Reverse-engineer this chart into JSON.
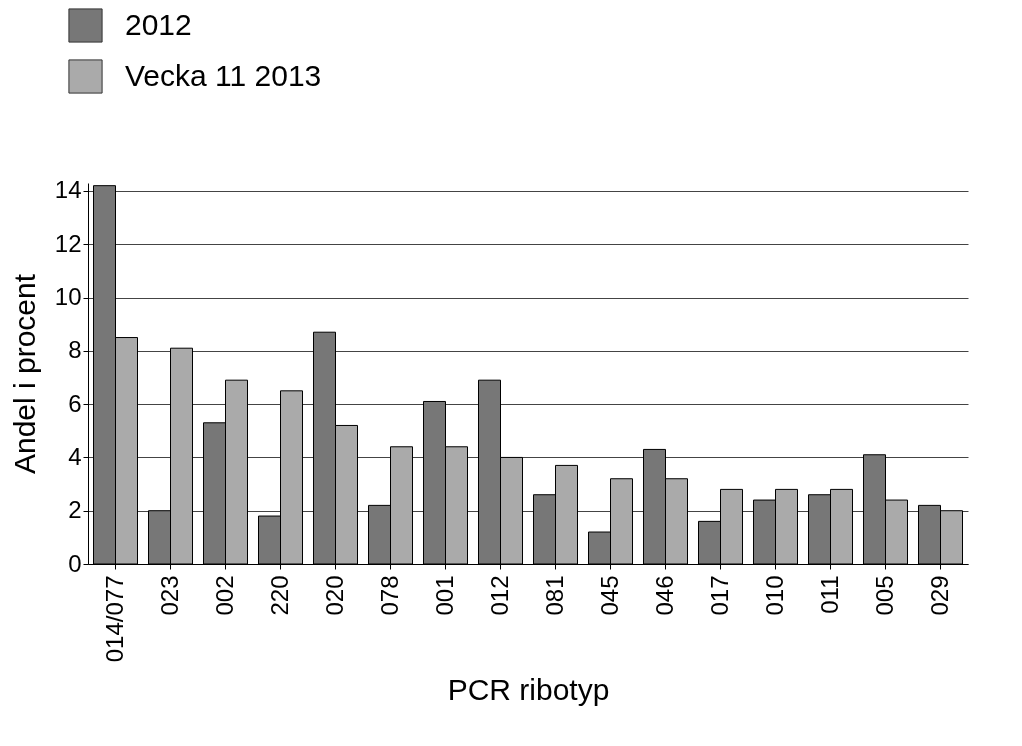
{
  "chart_data": {
    "type": "bar",
    "xlabel": "PCR ribotyp",
    "ylabel": "Andel i procent",
    "categories": [
      "014/077",
      "023",
      "002",
      "220",
      "020",
      "078",
      "001",
      "012",
      "081",
      "045",
      "046",
      "017",
      "010",
      "011",
      "005",
      "029"
    ],
    "series": [
      {
        "name": "2012",
        "color": "#777777",
        "values": [
          14.2,
          2.0,
          5.3,
          1.8,
          8.7,
          2.2,
          6.1,
          6.9,
          2.6,
          1.2,
          4.3,
          1.6,
          2.4,
          2.6,
          4.1,
          2.2
        ]
      },
      {
        "name": "Vecka 11 2013",
        "color": "#aaaaaa",
        "values": [
          8.5,
          8.1,
          6.9,
          6.5,
          5.2,
          4.4,
          4.4,
          4.0,
          3.7,
          3.2,
          3.2,
          2.8,
          2.8,
          2.8,
          2.4,
          2.0
        ]
      }
    ],
    "ylim": [
      0,
      14.3
    ],
    "yticks": [
      0,
      2,
      4,
      6,
      8,
      10,
      12,
      14
    ],
    "grid": "y",
    "legend": "top left"
  }
}
